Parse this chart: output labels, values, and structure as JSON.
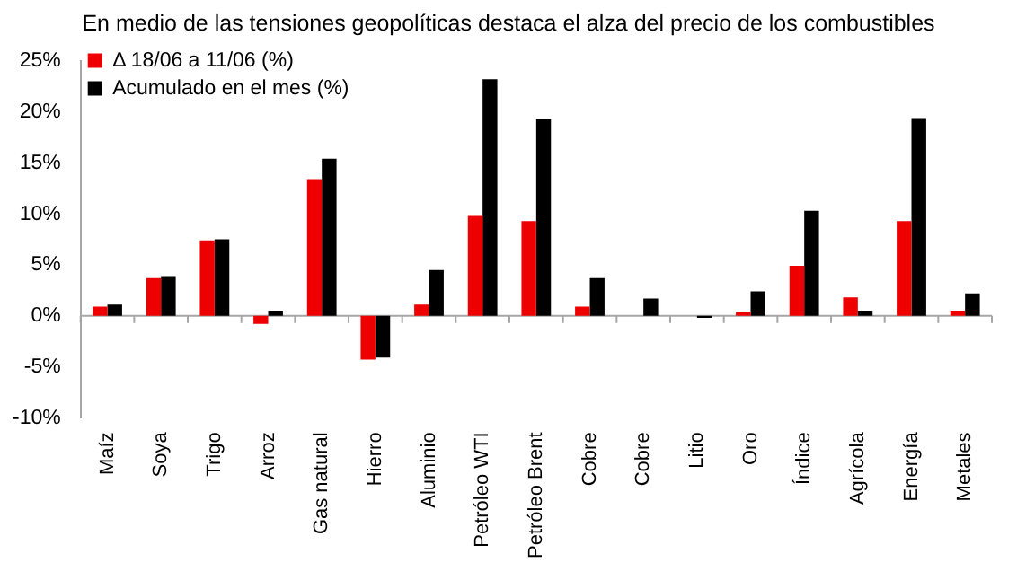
{
  "chart_data": {
    "type": "bar",
    "title": "En medio de las tensiones geopolíticas destaca el alza del precio de los combustibles",
    "categories": [
      "Maíz",
      "Soya",
      "Trigo",
      "Arroz",
      "Gas natural",
      "Hierro",
      "Aluminio",
      "Petróleo WTI",
      "Petróleo Brent",
      "Cobre",
      "Cobre",
      "Litio",
      "Oro",
      "Índice",
      "Agrícola",
      "Energía",
      "Metales"
    ],
    "series": [
      {
        "name": "Δ 18/06 a 11/06 (%)",
        "color": "#ee0000",
        "values": [
          0.9,
          3.7,
          7.4,
          -0.8,
          13.4,
          -4.3,
          1.1,
          9.8,
          9.3,
          0.9,
          0,
          0,
          0.4,
          4.9,
          1.8,
          9.3,
          0.5
        ]
      },
      {
        "name": "Acumulado en el mes (%)",
        "color": "#000000",
        "values": [
          1.1,
          3.9,
          7.5,
          0.5,
          15.4,
          -4.1,
          4.5,
          23.2,
          19.3,
          3.7,
          1.7,
          -0.2,
          2.4,
          10.3,
          0.5,
          19.4,
          2.2
        ]
      }
    ],
    "ylim": [
      -10,
      25
    ],
    "yticks": [
      {
        "value": -10,
        "label": "-10%"
      },
      {
        "value": -5,
        "label": "-5%"
      },
      {
        "value": 0,
        "label": "0%"
      },
      {
        "value": 5,
        "label": "5%"
      },
      {
        "value": 10,
        "label": "10%"
      },
      {
        "value": 15,
        "label": "15%"
      },
      {
        "value": 20,
        "label": "20%"
      },
      {
        "value": 25,
        "label": "25%"
      }
    ],
    "legend": "top left"
  }
}
